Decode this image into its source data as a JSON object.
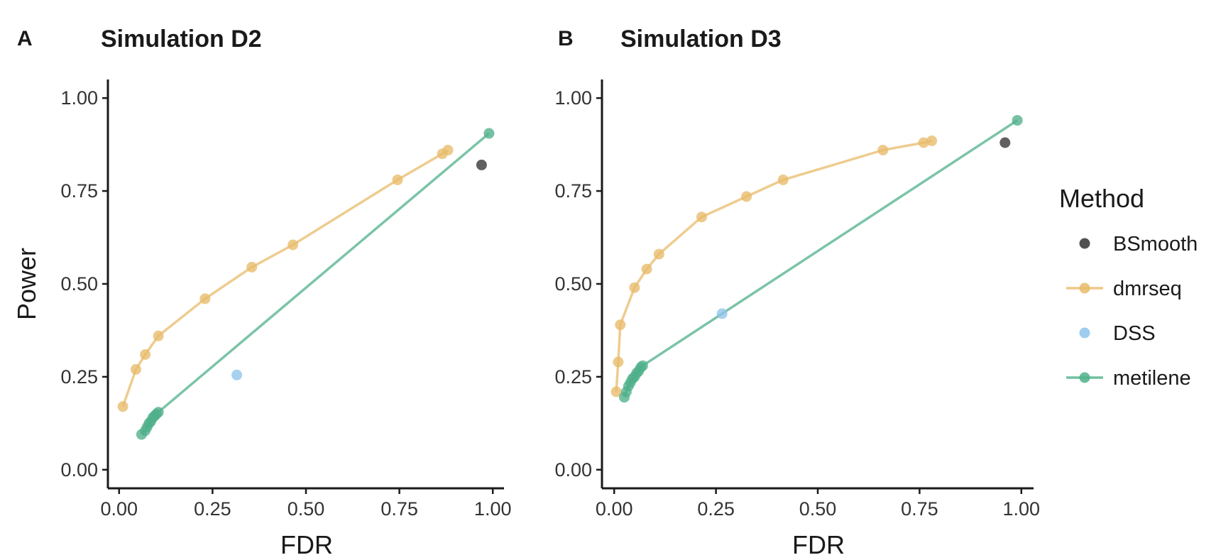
{
  "chart_data": [
    {
      "type": "line",
      "panel_label": "A",
      "title": "Simulation D2",
      "xlabel": "FDR",
      "ylabel": "Power",
      "xlim": [
        -0.03,
        1.03
      ],
      "ylim": [
        -0.05,
        1.05
      ],
      "x_ticks": [
        0.0,
        0.25,
        0.5,
        0.75,
        1.0
      ],
      "x_tick_labels": [
        "0.00",
        "0.25",
        "0.50",
        "0.75",
        "1.00"
      ],
      "y_ticks": [
        0.0,
        0.25,
        0.5,
        0.75,
        1.0
      ],
      "y_tick_labels": [
        "0.00",
        "0.25",
        "0.50",
        "0.75",
        "1.00"
      ],
      "grid": false,
      "series": [
        {
          "name": "BSmooth",
          "color": "#333333",
          "line": false,
          "points": [
            [
              0.97,
              0.82
            ]
          ]
        },
        {
          "name": "dmrseq",
          "color": "#E8BB6A",
          "line": true,
          "points": [
            [
              0.01,
              0.17
            ],
            [
              0.045,
              0.27
            ],
            [
              0.07,
              0.31
            ],
            [
              0.105,
              0.36
            ],
            [
              0.23,
              0.46
            ],
            [
              0.355,
              0.545
            ],
            [
              0.465,
              0.605
            ],
            [
              0.745,
              0.78
            ],
            [
              0.865,
              0.85
            ],
            [
              0.88,
              0.86
            ]
          ]
        },
        {
          "name": "DSS",
          "color": "#8EC4EA",
          "line": false,
          "points": [
            [
              0.315,
              0.255
            ]
          ]
        },
        {
          "name": "metilene",
          "color": "#4FB08A",
          "line": true,
          "points": [
            [
              0.06,
              0.095
            ],
            [
              0.07,
              0.105
            ],
            [
              0.075,
              0.115
            ],
            [
              0.08,
              0.125
            ],
            [
              0.085,
              0.13
            ],
            [
              0.09,
              0.14
            ],
            [
              0.095,
              0.145
            ],
            [
              0.1,
              0.15
            ],
            [
              0.105,
              0.155
            ],
            [
              0.99,
              0.905
            ]
          ]
        }
      ]
    },
    {
      "type": "line",
      "panel_label": "B",
      "title": "Simulation D3",
      "xlabel": "FDR",
      "ylabel": "",
      "xlim": [
        -0.03,
        1.03
      ],
      "ylim": [
        -0.05,
        1.05
      ],
      "x_ticks": [
        0.0,
        0.25,
        0.5,
        0.75,
        1.0
      ],
      "x_tick_labels": [
        "0.00",
        "0.25",
        "0.50",
        "0.75",
        "1.00"
      ],
      "y_ticks": [
        0.0,
        0.25,
        0.5,
        0.75,
        1.0
      ],
      "y_tick_labels": [
        "0.00",
        "0.25",
        "0.50",
        "0.75",
        "1.00"
      ],
      "grid": false,
      "series": [
        {
          "name": "BSmooth",
          "color": "#333333",
          "line": false,
          "points": [
            [
              0.96,
              0.88
            ]
          ]
        },
        {
          "name": "dmrseq",
          "color": "#E8BB6A",
          "line": true,
          "points": [
            [
              0.005,
              0.21
            ],
            [
              0.01,
              0.29
            ],
            [
              0.015,
              0.39
            ],
            [
              0.05,
              0.49
            ],
            [
              0.08,
              0.54
            ],
            [
              0.11,
              0.58
            ],
            [
              0.215,
              0.68
            ],
            [
              0.325,
              0.735
            ],
            [
              0.415,
              0.78
            ],
            [
              0.66,
              0.86
            ],
            [
              0.76,
              0.88
            ],
            [
              0.78,
              0.885
            ]
          ]
        },
        {
          "name": "DSS",
          "color": "#8EC4EA",
          "line": false,
          "points": [
            [
              0.265,
              0.42
            ]
          ]
        },
        {
          "name": "metilene",
          "color": "#4FB08A",
          "line": true,
          "points": [
            [
              0.025,
              0.195
            ],
            [
              0.03,
              0.21
            ],
            [
              0.035,
              0.225
            ],
            [
              0.04,
              0.235
            ],
            [
              0.045,
              0.245
            ],
            [
              0.05,
              0.25
            ],
            [
              0.055,
              0.26
            ],
            [
              0.06,
              0.265
            ],
            [
              0.065,
              0.275
            ],
            [
              0.07,
              0.28
            ],
            [
              0.99,
              0.94
            ]
          ]
        }
      ]
    }
  ],
  "legend": {
    "title": "Method",
    "placement": "right",
    "items": [
      {
        "label": "BSmooth",
        "color": "#333333",
        "line": false
      },
      {
        "label": "dmrseq",
        "color": "#E8BB6A",
        "line": true
      },
      {
        "label": "DSS",
        "color": "#8EC4EA",
        "line": false
      },
      {
        "label": "metilene",
        "color": "#4FB08A",
        "line": true
      }
    ]
  }
}
